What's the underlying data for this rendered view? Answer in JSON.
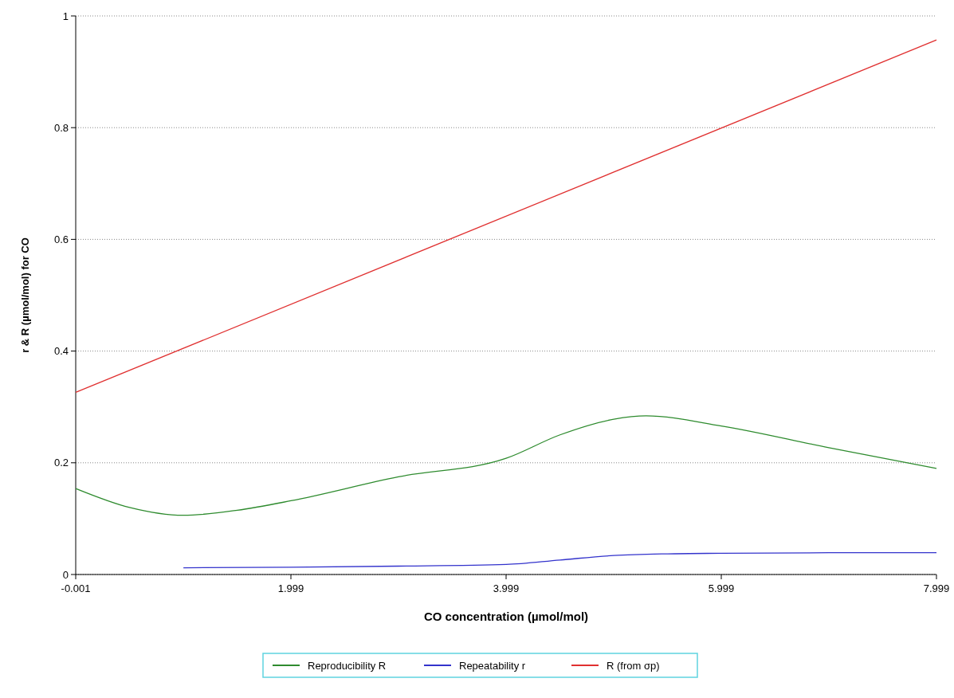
{
  "chart_data": {
    "type": "line",
    "xlabel": "CO concentration (µmol/mol)",
    "ylabel": "r & R (µmol/mol) for CO",
    "xlim": [
      -0.001,
      7.999
    ],
    "xticks": [
      -0.001,
      1.999,
      3.999,
      5.999,
      7.999
    ],
    "ylim": [
      0,
      1
    ],
    "yticks": [
      0,
      0.2,
      0.4,
      0.6,
      0.8,
      1
    ],
    "grid": "y",
    "legend": "bottom",
    "line_style": "solid",
    "marker": "none",
    "series": [
      {
        "name": "Reproducibility R",
        "color": "#2e8b2e",
        "x": [
          -0.001,
          0.5,
          1.0,
          1.5,
          1.999,
          2.999,
          3.999,
          4.5,
          5.0,
          5.3,
          5.999,
          6.999,
          7.999
        ],
        "values": [
          0.154,
          0.12,
          0.106,
          0.115,
          0.132,
          0.175,
          0.208,
          0.25,
          0.278,
          0.284,
          0.266,
          0.227,
          0.19
        ]
      },
      {
        "name": "Repeatability r",
        "color": "#3333cc",
        "x": [
          1.0,
          1.999,
          2.999,
          3.999,
          4.5,
          5.0,
          5.5,
          5.999,
          6.999,
          7.999
        ],
        "values": [
          0.012,
          0.013,
          0.015,
          0.018,
          0.026,
          0.034,
          0.037,
          0.038,
          0.039,
          0.039
        ]
      },
      {
        "name": "R (from σp)",
        "color": "#e03030",
        "x": [
          -0.001,
          7.999
        ],
        "values": [
          0.326,
          0.957
        ]
      }
    ]
  }
}
